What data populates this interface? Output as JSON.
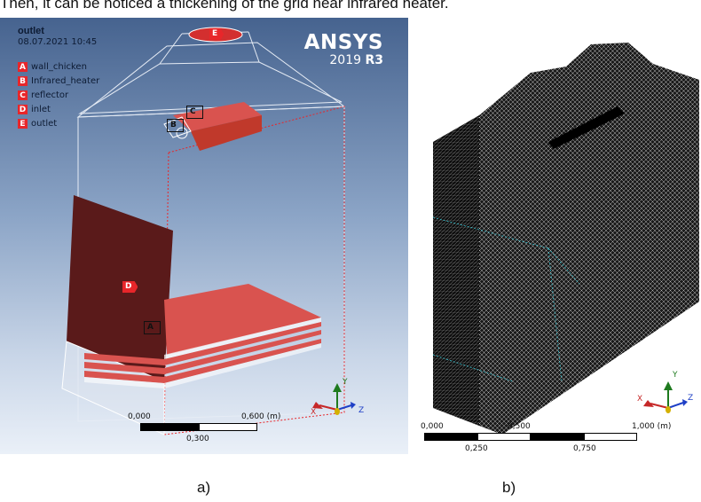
{
  "caption": "Then, it can be noticed a thickening of the grid near infrared heater.",
  "panel_a": {
    "title": "outlet",
    "datetime": "08.07.2021 10:45",
    "legend": [
      {
        "letter": "A",
        "label": "wall_chicken"
      },
      {
        "letter": "B",
        "label": "Infrared_heater"
      },
      {
        "letter": "C",
        "label": "reflector"
      },
      {
        "letter": "D",
        "label": "inlet"
      },
      {
        "letter": "E",
        "label": "outlet"
      }
    ],
    "brand": {
      "name": "ANSYS",
      "version_prefix": "2019 ",
      "version_suffix": "R3"
    },
    "tags": {
      "E": "E",
      "C": "C",
      "B": "B",
      "D": "D",
      "A": "A"
    },
    "scale": {
      "start": "0,000",
      "end": "0,600 (m)",
      "mid": "0,300"
    },
    "axes": {
      "x": "X",
      "y": "Y",
      "z": "Z"
    },
    "colors": {
      "accent": "#e8262a",
      "inlet_face": "#5a1a1a",
      "shelf": "#d9534f"
    }
  },
  "panel_b": {
    "scale": {
      "start": "0,000",
      "mid1": "0,500",
      "end": "1,000 (m)",
      "low1": "0,250",
      "low2": "0,750"
    },
    "axes": {
      "x": "X",
      "y": "Y",
      "z": "Z"
    }
  },
  "labels": {
    "a": "a)",
    "b": "b)"
  }
}
